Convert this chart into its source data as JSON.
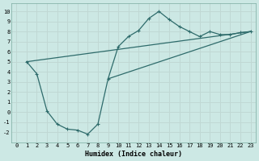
{
  "xlabel": "Humidex (Indice chaleur)",
  "bg_color": "#cce8e4",
  "grid_color": "#c0d8d4",
  "line_color": "#2e6b6b",
  "xlim": [
    -0.5,
    23.5
  ],
  "ylim": [
    -3.0,
    10.8
  ],
  "xticks": [
    0,
    1,
    2,
    3,
    4,
    5,
    6,
    7,
    8,
    9,
    10,
    11,
    12,
    13,
    14,
    15,
    16,
    17,
    18,
    19,
    20,
    21,
    22,
    23
  ],
  "yticks": [
    -2,
    -1,
    0,
    1,
    2,
    3,
    4,
    5,
    6,
    7,
    8,
    9,
    10
  ],
  "curve_x": [
    1,
    2,
    3,
    4,
    5,
    6,
    7,
    8,
    9,
    10,
    11,
    12,
    13,
    14,
    15,
    16,
    17,
    18,
    19,
    20,
    21,
    22,
    23
  ],
  "curve_y": [
    5.0,
    3.8,
    0.1,
    -1.2,
    -1.7,
    -1.8,
    -2.2,
    -1.2,
    3.3,
    6.5,
    7.5,
    8.1,
    9.3,
    10.0,
    9.2,
    8.5,
    8.0,
    7.5,
    8.0,
    7.7,
    7.7,
    7.9,
    8.0
  ],
  "line1_x": [
    1,
    23
  ],
  "line1_y": [
    5.0,
    8.0
  ],
  "line2_x": [
    9,
    23
  ],
  "line2_y": [
    3.3,
    8.0
  ],
  "tick_fontsize": 5.0,
  "xlabel_fontsize": 6.0
}
